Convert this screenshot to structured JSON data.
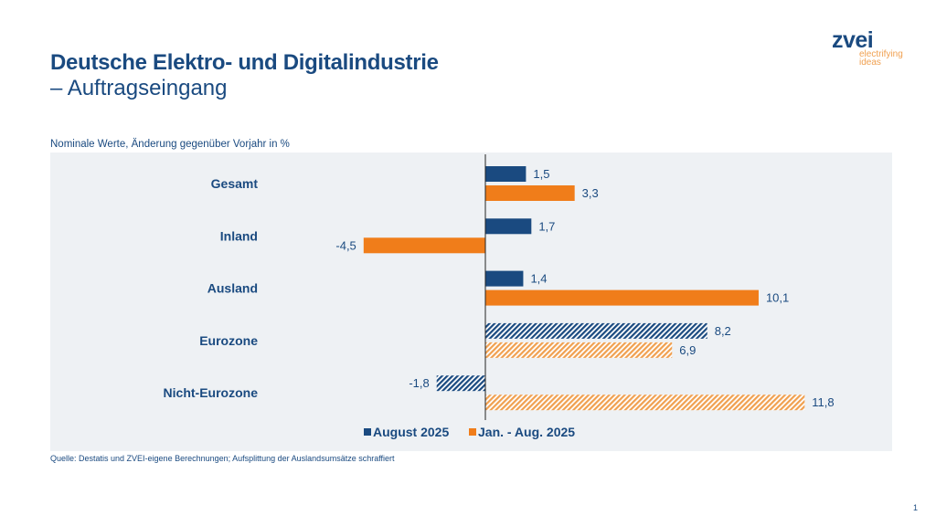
{
  "header": {
    "title": "Deutsche Elektro- und Digitalindustrie",
    "subtitle": "– Auftragseingang"
  },
  "logo": {
    "name": "zvei",
    "tagline1": "electrifying",
    "tagline2": "ideas"
  },
  "note": "Nominale Werte, Änderung gegenüber Vorjahr in %",
  "source": "Quelle: Destatis und ZVEI-eigene Berechnungen; Aufsplittung der Auslandsumsätze schraffiert",
  "page_number": "1",
  "chart_data": {
    "type": "bar",
    "orientation": "horizontal",
    "categories": [
      "Gesamt",
      "Inland",
      "Ausland",
      "Eurozone",
      "Nicht-Eurozone"
    ],
    "hatched_categories": [
      "Eurozone",
      "Nicht-Eurozone"
    ],
    "series": [
      {
        "name": "August 2025",
        "values": [
          1.5,
          1.7,
          1.4,
          8.2,
          -1.8
        ],
        "labels": [
          "1,5",
          "1,7",
          "1,4",
          "8,2",
          "-1,8"
        ],
        "color": "#1a4a80",
        "hatch_color": "#1a4a80"
      },
      {
        "name": "Jan. - Aug. 2025",
        "values": [
          3.3,
          -4.5,
          10.1,
          6.9,
          11.8
        ],
        "labels": [
          "3,3",
          "-4,5",
          "10,1",
          "6,9",
          "11,8"
        ],
        "color": "#f07d1a",
        "hatch_color": "#f0a050"
      }
    ],
    "legend": "bottom",
    "grid": false,
    "background": "#eef1f4"
  }
}
